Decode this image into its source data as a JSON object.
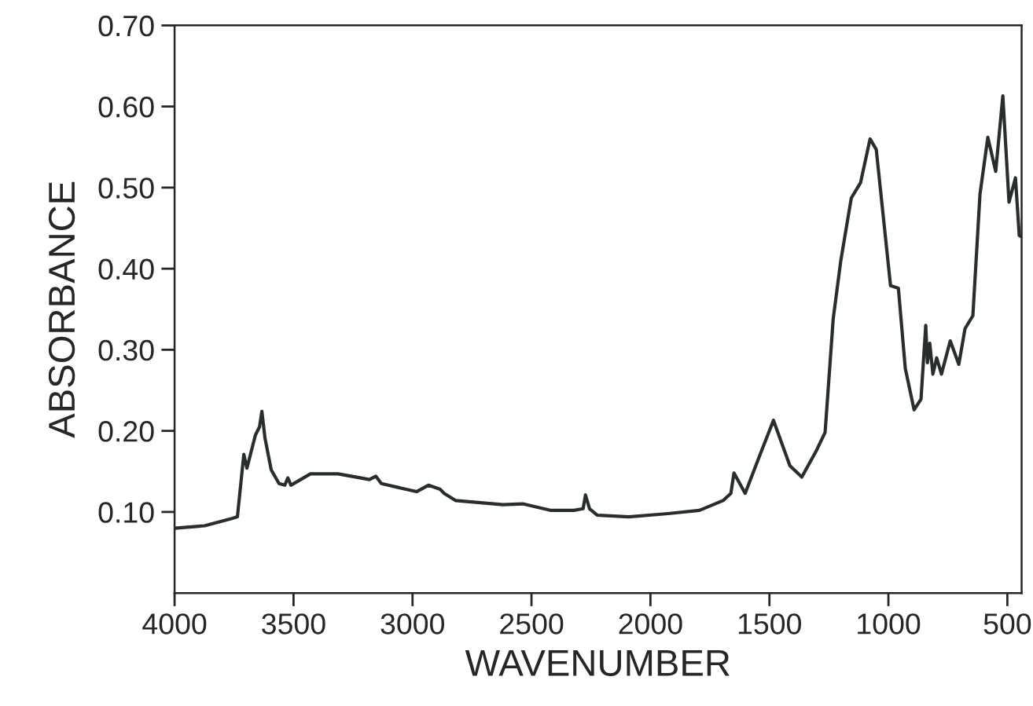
{
  "chart_data": {
    "type": "line",
    "xlabel": "WAVENUMBER",
    "ylabel": "ABSORBANCE",
    "x": [
      4000,
      3874,
      3759,
      3736,
      3709,
      3696,
      3660,
      3643,
      3633,
      3620,
      3594,
      3561,
      3537,
      3524,
      3511,
      3429,
      3313,
      3181,
      3154,
      3131,
      2983,
      2933,
      2884,
      2867,
      2818,
      2620,
      2537,
      2421,
      2322,
      2283,
      2273,
      2256,
      2223,
      2091,
      1926,
      1794,
      1695,
      1662,
      1649,
      1602,
      1543,
      1483,
      1414,
      1364,
      1302,
      1266,
      1232,
      1200,
      1156,
      1117,
      1077,
      1051,
      991,
      958,
      929,
      892,
      863,
      843,
      836,
      826,
      813,
      797,
      777,
      740,
      704,
      678,
      645,
      615,
      582,
      549,
      519,
      493,
      466,
      450,
      445
    ],
    "series": [
      {
        "color": "#2a2e2a",
        "values": [
          0.08,
          0.083,
          0.092,
          0.094,
          0.171,
          0.154,
          0.195,
          0.205,
          0.224,
          0.191,
          0.152,
          0.135,
          0.133,
          0.142,
          0.133,
          0.147,
          0.147,
          0.14,
          0.144,
          0.135,
          0.125,
          0.133,
          0.128,
          0.123,
          0.114,
          0.109,
          0.11,
          0.102,
          0.102,
          0.104,
          0.121,
          0.104,
          0.096,
          0.094,
          0.098,
          0.102,
          0.114,
          0.123,
          0.148,
          0.123,
          0.168,
          0.213,
          0.157,
          0.143,
          0.176,
          0.198,
          0.338,
          0.41,
          0.487,
          0.506,
          0.56,
          0.547,
          0.379,
          0.376,
          0.277,
          0.226,
          0.239,
          0.33,
          0.284,
          0.308,
          0.27,
          0.29,
          0.27,
          0.311,
          0.282,
          0.326,
          0.342,
          0.492,
          0.562,
          0.52,
          0.613,
          0.482,
          0.512,
          0.441,
          0.44
        ]
      }
    ],
    "xlim": [
      4000,
      440
    ],
    "ylim": [
      0,
      0.7
    ],
    "xticks": [
      4000,
      3500,
      3000,
      2500,
      2000,
      1500,
      1000,
      500
    ],
    "yticks": [
      {
        "value": 0.1,
        "label": "0.10"
      },
      {
        "value": 0.2,
        "label": "0.20"
      },
      {
        "value": 0.3,
        "label": "0.30"
      },
      {
        "value": 0.4,
        "label": "0.40"
      },
      {
        "value": 0.5,
        "label": "0.50"
      },
      {
        "value": 0.6,
        "label": "0.60"
      },
      {
        "value": 0.7,
        "label": "0.70"
      }
    ],
    "grid": false,
    "legend": false
  }
}
